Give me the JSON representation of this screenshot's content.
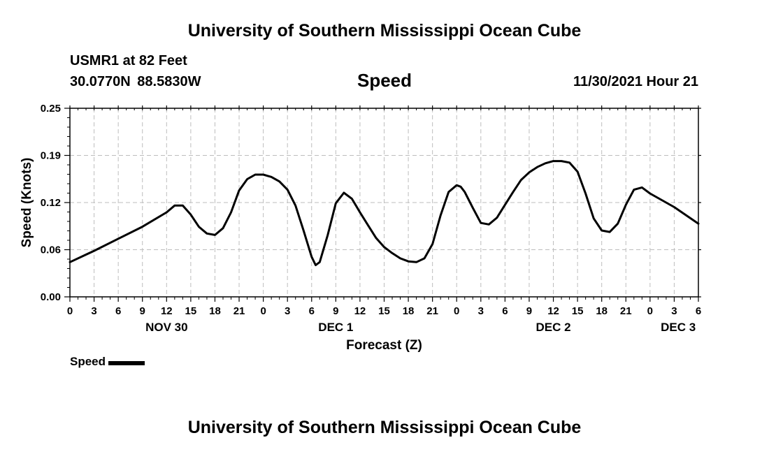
{
  "header": {
    "title": "University of Southern Mississippi Ocean Cube",
    "station": "USMR1 at 82 Feet",
    "coordinates": "30.0770N  88.5830W",
    "subtitle": "Speed",
    "datetime": "11/30/2021 Hour 21"
  },
  "footer": {
    "title": "University of Southern Mississippi Ocean Cube"
  },
  "legend": {
    "label": "Speed",
    "color": "#000000"
  },
  "chart_data": {
    "type": "line",
    "title": "Speed",
    "xlabel": "Forecast (Z)",
    "ylabel": "Speed (Knots)",
    "xlim": [
      0,
      78
    ],
    "ylim": [
      0,
      0.25
    ],
    "grid": true,
    "legend_position": "bottom-left",
    "y_ticks": [
      {
        "value": 0,
        "label": "0.00"
      },
      {
        "value": 0.0625,
        "label": "0.06"
      },
      {
        "value": 0.125,
        "label": "0.12"
      },
      {
        "value": 0.1875,
        "label": "0.19"
      },
      {
        "value": 0.25,
        "label": "0.25"
      }
    ],
    "x_ticks": [
      {
        "value": 0,
        "label": "0"
      },
      {
        "value": 3,
        "label": "3"
      },
      {
        "value": 6,
        "label": "6"
      },
      {
        "value": 9,
        "label": "9"
      },
      {
        "value": 12,
        "label": "12"
      },
      {
        "value": 15,
        "label": "15"
      },
      {
        "value": 18,
        "label": "18"
      },
      {
        "value": 21,
        "label": "21"
      },
      {
        "value": 24,
        "label": "0"
      },
      {
        "value": 27,
        "label": "3"
      },
      {
        "value": 30,
        "label": "6"
      },
      {
        "value": 33,
        "label": "9"
      },
      {
        "value": 36,
        "label": "12"
      },
      {
        "value": 39,
        "label": "15"
      },
      {
        "value": 42,
        "label": "18"
      },
      {
        "value": 45,
        "label": "21"
      },
      {
        "value": 48,
        "label": "0"
      },
      {
        "value": 51,
        "label": "3"
      },
      {
        "value": 54,
        "label": "6"
      },
      {
        "value": 57,
        "label": "9"
      },
      {
        "value": 60,
        "label": "12"
      },
      {
        "value": 63,
        "label": "15"
      },
      {
        "value": 66,
        "label": "18"
      },
      {
        "value": 69,
        "label": "21"
      },
      {
        "value": 72,
        "label": "0"
      },
      {
        "value": 75,
        "label": "3"
      },
      {
        "value": 78,
        "label": "6"
      }
    ],
    "day_labels": [
      {
        "value": 12,
        "label": "NOV 30"
      },
      {
        "value": 33,
        "label": "DEC 1"
      },
      {
        "value": 60,
        "label": "DEC 2"
      },
      {
        "value": 75.5,
        "label": "DEC 3"
      }
    ],
    "series": [
      {
        "name": "Speed",
        "color": "#000000",
        "x": [
          0,
          3,
          6,
          9,
          12,
          13,
          14,
          15,
          16,
          17,
          18,
          19,
          20,
          21,
          22,
          23,
          24,
          25,
          26,
          27,
          28,
          29,
          30,
          30.5,
          31,
          32,
          33,
          34,
          35,
          36,
          37,
          38,
          39,
          40,
          41,
          42,
          43,
          44,
          45,
          46,
          47,
          48,
          48.5,
          49,
          50,
          51,
          52,
          53,
          54,
          55,
          56,
          57,
          58,
          59,
          60,
          61,
          62,
          63,
          64,
          65,
          66,
          67,
          68,
          69,
          70,
          71,
          72,
          75,
          78
        ],
        "y": [
          0.046,
          0.061,
          0.077,
          0.093,
          0.112,
          0.121,
          0.121,
          0.109,
          0.093,
          0.084,
          0.082,
          0.091,
          0.112,
          0.141,
          0.156,
          0.162,
          0.162,
          0.159,
          0.153,
          0.142,
          0.121,
          0.088,
          0.053,
          0.042,
          0.046,
          0.082,
          0.124,
          0.138,
          0.13,
          0.112,
          0.095,
          0.078,
          0.066,
          0.058,
          0.051,
          0.047,
          0.046,
          0.051,
          0.07,
          0.108,
          0.139,
          0.148,
          0.146,
          0.139,
          0.118,
          0.098,
          0.096,
          0.105,
          0.122,
          0.139,
          0.155,
          0.165,
          0.172,
          0.177,
          0.18,
          0.18,
          0.178,
          0.166,
          0.137,
          0.104,
          0.088,
          0.086,
          0.097,
          0.122,
          0.142,
          0.145,
          0.137,
          0.119,
          0.097
        ]
      }
    ]
  }
}
